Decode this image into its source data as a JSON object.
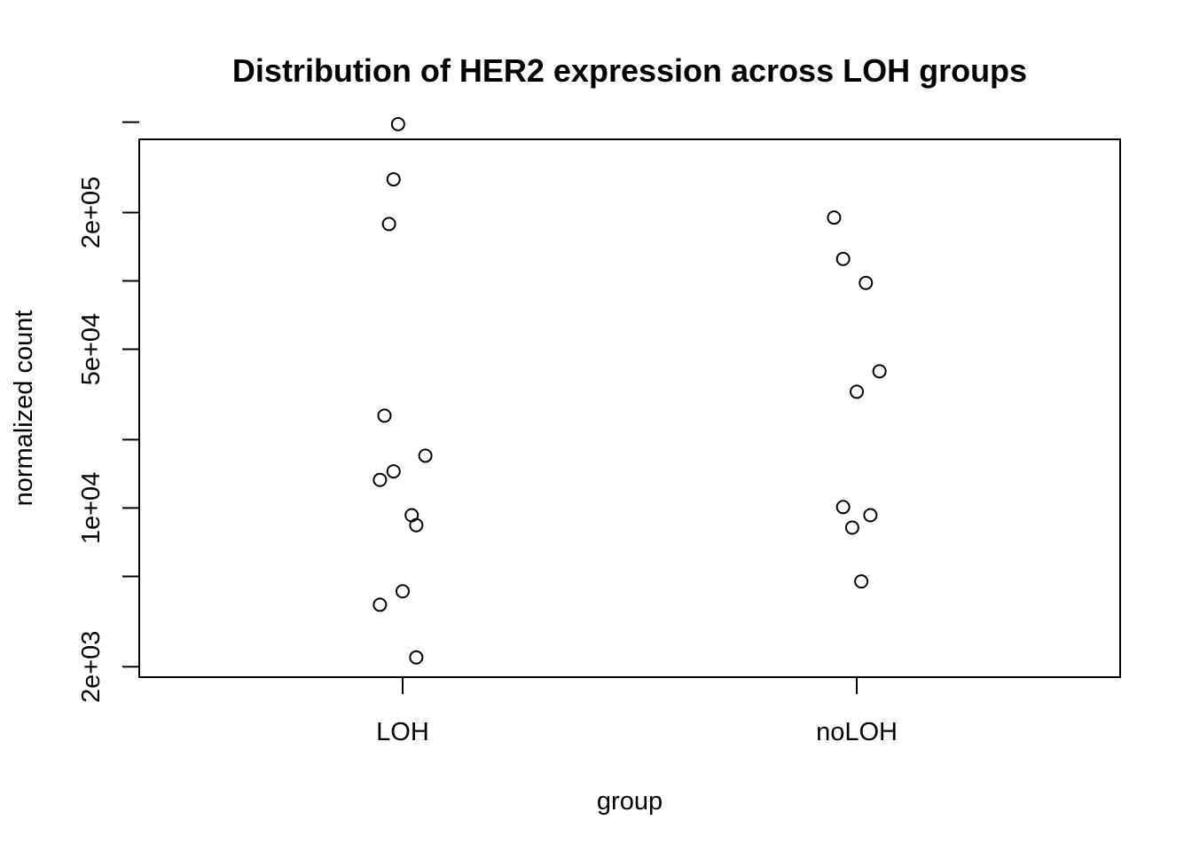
{
  "chart_data": {
    "type": "scatter",
    "title": "Distribution of HER2 expression across LOH groups",
    "xlabel": "group",
    "ylabel": "normalized count",
    "x_axis": {
      "scale": "categorical",
      "categories": [
        "LOH",
        "noLOH"
      ]
    },
    "y_axis": {
      "scale": "log",
      "range": [
        1800,
        420000
      ],
      "ticks": [
        2000,
        5000,
        10000,
        20000,
        50000,
        100000,
        200000,
        500000
      ],
      "tick_labels": [
        "2e+03",
        "",
        "1e+04",
        "",
        "5e+04",
        "",
        "2e+05",
        ""
      ]
    },
    "grid": false,
    "legend": "none",
    "marker": "open-circle",
    "series": [
      {
        "category": "LOH",
        "points": [
          {
            "x": 0.99,
            "y": 490000
          },
          {
            "x": 0.98,
            "y": 280000
          },
          {
            "x": 0.97,
            "y": 178000
          },
          {
            "x": 0.96,
            "y": 25500
          },
          {
            "x": 1.05,
            "y": 17000
          },
          {
            "x": 0.98,
            "y": 14500
          },
          {
            "x": 0.95,
            "y": 13300
          },
          {
            "x": 1.02,
            "y": 9300
          },
          {
            "x": 1.03,
            "y": 8400
          },
          {
            "x": 1.0,
            "y": 4300
          },
          {
            "x": 0.95,
            "y": 3750
          },
          {
            "x": 1.03,
            "y": 2200
          }
        ]
      },
      {
        "category": "noLOH",
        "points": [
          {
            "x": 1.95,
            "y": 190000
          },
          {
            "x": 1.97,
            "y": 125000
          },
          {
            "x": 2.02,
            "y": 98000
          },
          {
            "x": 2.05,
            "y": 40000
          },
          {
            "x": 2.0,
            "y": 32500
          },
          {
            "x": 1.97,
            "y": 10100
          },
          {
            "x": 2.03,
            "y": 9300
          },
          {
            "x": 1.99,
            "y": 8200
          },
          {
            "x": 2.01,
            "y": 4750
          }
        ]
      }
    ]
  }
}
